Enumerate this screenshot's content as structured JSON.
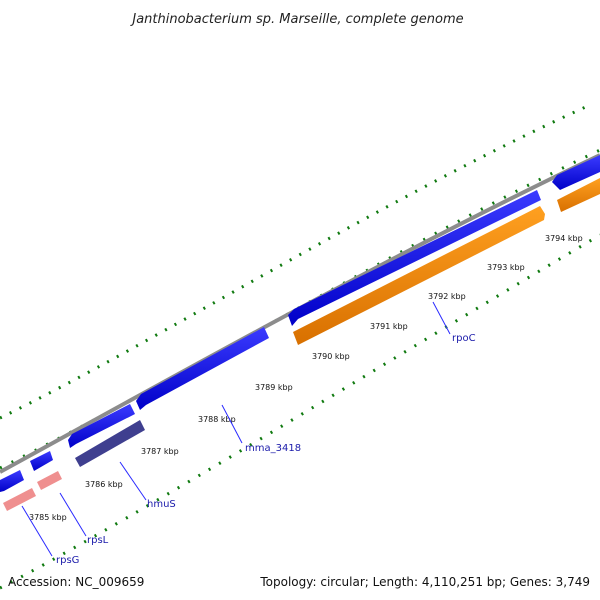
{
  "title": "Janthinobacterium sp. Marseille, complete genome",
  "footer": {
    "accession": "Accession: NC_009659",
    "topology": "Topology: circular; Length: 4,110,251 bp; Genes: 3,749"
  },
  "colors": {
    "backbone": "#8c8c8c",
    "cds_forward": "#0000ee",
    "cds_reverse_orange": "#ff8c00",
    "rRNA_pink": "#ef8f8f",
    "hmus_purple": "#3f3f8f",
    "gc_ticks": "#107a10",
    "label_line": "#2a2aff"
  },
  "tick_labels": [
    "3785 kbp",
    "3786 kbp",
    "3787 kbp",
    "3788 kbp",
    "3789 kbp",
    "3790 kbp",
    "3791 kbp",
    "3792 kbp",
    "3793 kbp",
    "3794 kbp"
  ],
  "gene_labels": [
    "rpsG",
    "rpsL",
    "hmuS",
    "mma_3418",
    "rpoC"
  ]
}
